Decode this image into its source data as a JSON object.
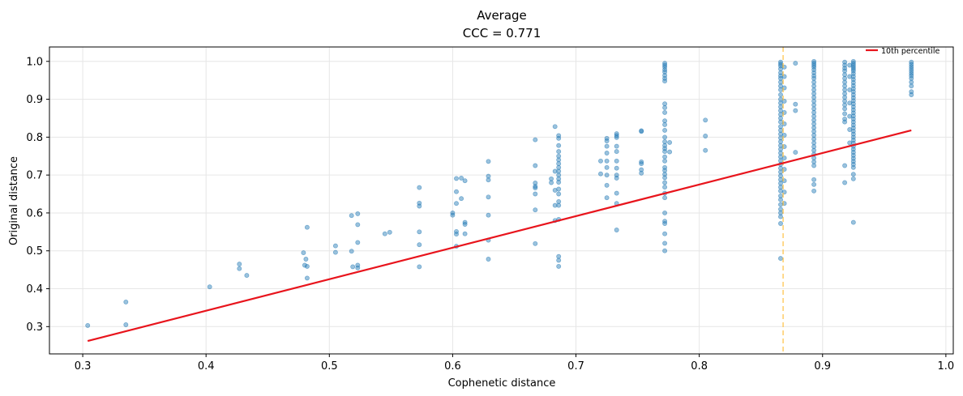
{
  "chart_data": {
    "type": "scatter",
    "title": "Average",
    "subtitle": "CCC = 0.771",
    "xlabel": "Cophenetic distance",
    "ylabel": "Original distance",
    "xlim": [
      0.273,
      1.006
    ],
    "ylim": [
      0.228,
      1.038
    ],
    "grid": true,
    "x_ticks": [
      0.3,
      0.4,
      0.5,
      0.6,
      0.7,
      0.8,
      0.9,
      1.0
    ],
    "x_tick_labels": [
      "0.3",
      "0.4",
      "0.5",
      "0.6",
      "0.7",
      "0.8",
      "0.9",
      "1.0"
    ],
    "y_ticks": [
      0.3,
      0.4,
      0.5,
      0.6,
      0.7,
      0.8,
      0.9,
      1.0
    ],
    "y_tick_labels": [
      "0.3",
      "0.4",
      "0.5",
      "0.6",
      "0.7",
      "0.8",
      "0.9",
      "1.0"
    ],
    "legend": {
      "position": "top-right",
      "entries": [
        "10th percentile"
      ]
    },
    "colors": {
      "points": "#1f77b4",
      "fit_line": "#e8141c",
      "vline": "#ffbf40",
      "grid": "#e6e6e6"
    },
    "fit_line": {
      "x": [
        0.304,
        0.972
      ],
      "y": [
        0.262,
        0.818
      ]
    },
    "vline_x": 0.868,
    "points": [
      {
        "x": 0.304,
        "y": 0.303
      },
      {
        "x": 0.335,
        "y": 0.365
      },
      {
        "x": 0.335,
        "y": 0.305
      },
      {
        "x": 0.403,
        "y": 0.405
      },
      {
        "x": 0.427,
        "y": 0.465
      },
      {
        "x": 0.427,
        "y": 0.453
      },
      {
        "x": 0.433,
        "y": 0.435
      },
      {
        "x": 0.479,
        "y": 0.495
      },
      {
        "x": 0.48,
        "y": 0.462
      },
      {
        "x": 0.481,
        "y": 0.478
      },
      {
        "x": 0.482,
        "y": 0.459
      },
      {
        "x": 0.482,
        "y": 0.428
      },
      {
        "x": 0.482,
        "y": 0.562
      },
      {
        "x": 0.505,
        "y": 0.513
      },
      {
        "x": 0.505,
        "y": 0.496
      },
      {
        "x": 0.518,
        "y": 0.593
      },
      {
        "x": 0.518,
        "y": 0.499
      },
      {
        "x": 0.519,
        "y": 0.458
      },
      {
        "x": 0.523,
        "y": 0.598
      },
      {
        "x": 0.523,
        "y": 0.569
      },
      {
        "x": 0.523,
        "y": 0.522
      },
      {
        "x": 0.523,
        "y": 0.462
      },
      {
        "x": 0.523,
        "y": 0.455
      },
      {
        "x": 0.545,
        "y": 0.545
      },
      {
        "x": 0.549,
        "y": 0.549
      },
      {
        "x": 0.573,
        "y": 0.667
      },
      {
        "x": 0.573,
        "y": 0.626
      },
      {
        "x": 0.573,
        "y": 0.618
      },
      {
        "x": 0.573,
        "y": 0.55
      },
      {
        "x": 0.573,
        "y": 0.516
      },
      {
        "x": 0.573,
        "y": 0.458
      },
      {
        "x": 0.6,
        "y": 0.6
      },
      {
        "x": 0.6,
        "y": 0.594
      },
      {
        "x": 0.603,
        "y": 0.691
      },
      {
        "x": 0.603,
        "y": 0.656
      },
      {
        "x": 0.603,
        "y": 0.625
      },
      {
        "x": 0.603,
        "y": 0.551
      },
      {
        "x": 0.603,
        "y": 0.544
      },
      {
        "x": 0.603,
        "y": 0.512
      },
      {
        "x": 0.607,
        "y": 0.638
      },
      {
        "x": 0.607,
        "y": 0.692
      },
      {
        "x": 0.61,
        "y": 0.685
      },
      {
        "x": 0.61,
        "y": 0.575
      },
      {
        "x": 0.61,
        "y": 0.57
      },
      {
        "x": 0.61,
        "y": 0.545
      },
      {
        "x": 0.629,
        "y": 0.736
      },
      {
        "x": 0.629,
        "y": 0.697
      },
      {
        "x": 0.629,
        "y": 0.687
      },
      {
        "x": 0.629,
        "y": 0.642
      },
      {
        "x": 0.629,
        "y": 0.594
      },
      {
        "x": 0.629,
        "y": 0.528
      },
      {
        "x": 0.629,
        "y": 0.478
      },
      {
        "x": 0.667,
        "y": 0.793
      },
      {
        "x": 0.667,
        "y": 0.725
      },
      {
        "x": 0.667,
        "y": 0.679
      },
      {
        "x": 0.667,
        "y": 0.67
      },
      {
        "x": 0.667,
        "y": 0.666
      },
      {
        "x": 0.667,
        "y": 0.65
      },
      {
        "x": 0.667,
        "y": 0.608
      },
      {
        "x": 0.667,
        "y": 0.519
      },
      {
        "x": 0.68,
        "y": 0.69
      },
      {
        "x": 0.68,
        "y": 0.68
      },
      {
        "x": 0.683,
        "y": 0.828
      },
      {
        "x": 0.683,
        "y": 0.71
      },
      {
        "x": 0.683,
        "y": 0.66
      },
      {
        "x": 0.683,
        "y": 0.62
      },
      {
        "x": 0.683,
        "y": 0.58
      },
      {
        "x": 0.686,
        "y": 0.804
      },
      {
        "x": 0.686,
        "y": 0.797
      },
      {
        "x": 0.686,
        "y": 0.778
      },
      {
        "x": 0.686,
        "y": 0.762
      },
      {
        "x": 0.686,
        "y": 0.75
      },
      {
        "x": 0.686,
        "y": 0.74
      },
      {
        "x": 0.686,
        "y": 0.73
      },
      {
        "x": 0.686,
        "y": 0.72
      },
      {
        "x": 0.686,
        "y": 0.71
      },
      {
        "x": 0.686,
        "y": 0.7
      },
      {
        "x": 0.686,
        "y": 0.69
      },
      {
        "x": 0.686,
        "y": 0.681
      },
      {
        "x": 0.686,
        "y": 0.663
      },
      {
        "x": 0.686,
        "y": 0.65
      },
      {
        "x": 0.686,
        "y": 0.63
      },
      {
        "x": 0.686,
        "y": 0.62
      },
      {
        "x": 0.686,
        "y": 0.583
      },
      {
        "x": 0.686,
        "y": 0.485
      },
      {
        "x": 0.686,
        "y": 0.475
      },
      {
        "x": 0.686,
        "y": 0.459
      },
      {
        "x": 0.72,
        "y": 0.737
      },
      {
        "x": 0.72,
        "y": 0.703
      },
      {
        "x": 0.725,
        "y": 0.797
      },
      {
        "x": 0.725,
        "y": 0.79
      },
      {
        "x": 0.725,
        "y": 0.776
      },
      {
        "x": 0.725,
        "y": 0.758
      },
      {
        "x": 0.725,
        "y": 0.737
      },
      {
        "x": 0.725,
        "y": 0.72
      },
      {
        "x": 0.725,
        "y": 0.7
      },
      {
        "x": 0.725,
        "y": 0.673
      },
      {
        "x": 0.725,
        "y": 0.64
      },
      {
        "x": 0.733,
        "y": 0.809
      },
      {
        "x": 0.733,
        "y": 0.804
      },
      {
        "x": 0.733,
        "y": 0.799
      },
      {
        "x": 0.733,
        "y": 0.776
      },
      {
        "x": 0.733,
        "y": 0.762
      },
      {
        "x": 0.733,
        "y": 0.737
      },
      {
        "x": 0.733,
        "y": 0.718
      },
      {
        "x": 0.733,
        "y": 0.7
      },
      {
        "x": 0.733,
        "y": 0.692
      },
      {
        "x": 0.733,
        "y": 0.652
      },
      {
        "x": 0.733,
        "y": 0.625
      },
      {
        "x": 0.733,
        "y": 0.555
      },
      {
        "x": 0.753,
        "y": 0.817
      },
      {
        "x": 0.753,
        "y": 0.815
      },
      {
        "x": 0.753,
        "y": 0.735
      },
      {
        "x": 0.753,
        "y": 0.73
      },
      {
        "x": 0.753,
        "y": 0.714
      },
      {
        "x": 0.753,
        "y": 0.705
      },
      {
        "x": 0.772,
        "y": 0.995
      },
      {
        "x": 0.772,
        "y": 0.99
      },
      {
        "x": 0.772,
        "y": 0.985
      },
      {
        "x": 0.772,
        "y": 0.978
      },
      {
        "x": 0.772,
        "y": 0.972
      },
      {
        "x": 0.772,
        "y": 0.963
      },
      {
        "x": 0.772,
        "y": 0.955
      },
      {
        "x": 0.772,
        "y": 0.948
      },
      {
        "x": 0.772,
        "y": 0.888
      },
      {
        "x": 0.772,
        "y": 0.878
      },
      {
        "x": 0.772,
        "y": 0.865
      },
      {
        "x": 0.772,
        "y": 0.843
      },
      {
        "x": 0.772,
        "y": 0.833
      },
      {
        "x": 0.772,
        "y": 0.818
      },
      {
        "x": 0.772,
        "y": 0.8
      },
      {
        "x": 0.772,
        "y": 0.788
      },
      {
        "x": 0.772,
        "y": 0.778
      },
      {
        "x": 0.772,
        "y": 0.77
      },
      {
        "x": 0.772,
        "y": 0.762
      },
      {
        "x": 0.772,
        "y": 0.748
      },
      {
        "x": 0.772,
        "y": 0.737
      },
      {
        "x": 0.772,
        "y": 0.72
      },
      {
        "x": 0.772,
        "y": 0.712
      },
      {
        "x": 0.772,
        "y": 0.702
      },
      {
        "x": 0.772,
        "y": 0.693
      },
      {
        "x": 0.772,
        "y": 0.68
      },
      {
        "x": 0.772,
        "y": 0.668
      },
      {
        "x": 0.772,
        "y": 0.652
      },
      {
        "x": 0.772,
        "y": 0.64
      },
      {
        "x": 0.772,
        "y": 0.6
      },
      {
        "x": 0.772,
        "y": 0.578
      },
      {
        "x": 0.772,
        "y": 0.572
      },
      {
        "x": 0.772,
        "y": 0.545
      },
      {
        "x": 0.772,
        "y": 0.52
      },
      {
        "x": 0.772,
        "y": 0.5
      },
      {
        "x": 0.776,
        "y": 0.786
      },
      {
        "x": 0.776,
        "y": 0.761
      },
      {
        "x": 0.805,
        "y": 0.845
      },
      {
        "x": 0.805,
        "y": 0.803
      },
      {
        "x": 0.805,
        "y": 0.765
      },
      {
        "x": 0.866,
        "y": 0.998
      },
      {
        "x": 0.866,
        "y": 0.993
      },
      {
        "x": 0.866,
        "y": 0.988
      },
      {
        "x": 0.866,
        "y": 0.98
      },
      {
        "x": 0.866,
        "y": 0.97
      },
      {
        "x": 0.866,
        "y": 0.962
      },
      {
        "x": 0.866,
        "y": 0.955
      },
      {
        "x": 0.866,
        "y": 0.945
      },
      {
        "x": 0.866,
        "y": 0.935
      },
      {
        "x": 0.866,
        "y": 0.925
      },
      {
        "x": 0.866,
        "y": 0.912
      },
      {
        "x": 0.866,
        "y": 0.9
      },
      {
        "x": 0.866,
        "y": 0.89
      },
      {
        "x": 0.866,
        "y": 0.88
      },
      {
        "x": 0.866,
        "y": 0.87
      },
      {
        "x": 0.866,
        "y": 0.86
      },
      {
        "x": 0.866,
        "y": 0.85
      },
      {
        "x": 0.866,
        "y": 0.84
      },
      {
        "x": 0.866,
        "y": 0.828
      },
      {
        "x": 0.866,
        "y": 0.818
      },
      {
        "x": 0.866,
        "y": 0.808
      },
      {
        "x": 0.866,
        "y": 0.798
      },
      {
        "x": 0.866,
        "y": 0.788
      },
      {
        "x": 0.866,
        "y": 0.778
      },
      {
        "x": 0.866,
        "y": 0.768
      },
      {
        "x": 0.866,
        "y": 0.758
      },
      {
        "x": 0.866,
        "y": 0.748
      },
      {
        "x": 0.866,
        "y": 0.738
      },
      {
        "x": 0.866,
        "y": 0.728
      },
      {
        "x": 0.866,
        "y": 0.718
      },
      {
        "x": 0.866,
        "y": 0.708
      },
      {
        "x": 0.866,
        "y": 0.698
      },
      {
        "x": 0.866,
        "y": 0.688
      },
      {
        "x": 0.866,
        "y": 0.678
      },
      {
        "x": 0.866,
        "y": 0.668
      },
      {
        "x": 0.866,
        "y": 0.658
      },
      {
        "x": 0.866,
        "y": 0.645
      },
      {
        "x": 0.866,
        "y": 0.635
      },
      {
        "x": 0.866,
        "y": 0.622
      },
      {
        "x": 0.866,
        "y": 0.61
      },
      {
        "x": 0.866,
        "y": 0.6
      },
      {
        "x": 0.866,
        "y": 0.59
      },
      {
        "x": 0.866,
        "y": 0.572
      },
      {
        "x": 0.866,
        "y": 0.48
      },
      {
        "x": 0.869,
        "y": 0.985
      },
      {
        "x": 0.869,
        "y": 0.96
      },
      {
        "x": 0.869,
        "y": 0.93
      },
      {
        "x": 0.869,
        "y": 0.895
      },
      {
        "x": 0.869,
        "y": 0.865
      },
      {
        "x": 0.869,
        "y": 0.835
      },
      {
        "x": 0.869,
        "y": 0.805
      },
      {
        "x": 0.869,
        "y": 0.775
      },
      {
        "x": 0.869,
        "y": 0.745
      },
      {
        "x": 0.869,
        "y": 0.715
      },
      {
        "x": 0.869,
        "y": 0.685
      },
      {
        "x": 0.869,
        "y": 0.655
      },
      {
        "x": 0.869,
        "y": 0.625
      },
      {
        "x": 0.878,
        "y": 0.995
      },
      {
        "x": 0.878,
        "y": 0.887
      },
      {
        "x": 0.878,
        "y": 0.87
      },
      {
        "x": 0.878,
        "y": 0.76
      },
      {
        "x": 0.893,
        "y": 1.0
      },
      {
        "x": 0.893,
        "y": 0.995
      },
      {
        "x": 0.893,
        "y": 0.99
      },
      {
        "x": 0.893,
        "y": 0.985
      },
      {
        "x": 0.893,
        "y": 0.978
      },
      {
        "x": 0.893,
        "y": 0.97
      },
      {
        "x": 0.893,
        "y": 0.962
      },
      {
        "x": 0.893,
        "y": 0.955
      },
      {
        "x": 0.893,
        "y": 0.945
      },
      {
        "x": 0.893,
        "y": 0.935
      },
      {
        "x": 0.893,
        "y": 0.925
      },
      {
        "x": 0.893,
        "y": 0.915
      },
      {
        "x": 0.893,
        "y": 0.905
      },
      {
        "x": 0.893,
        "y": 0.895
      },
      {
        "x": 0.893,
        "y": 0.885
      },
      {
        "x": 0.893,
        "y": 0.875
      },
      {
        "x": 0.893,
        "y": 0.865
      },
      {
        "x": 0.893,
        "y": 0.855
      },
      {
        "x": 0.893,
        "y": 0.845
      },
      {
        "x": 0.893,
        "y": 0.835
      },
      {
        "x": 0.893,
        "y": 0.825
      },
      {
        "x": 0.893,
        "y": 0.815
      },
      {
        "x": 0.893,
        "y": 0.805
      },
      {
        "x": 0.893,
        "y": 0.795
      },
      {
        "x": 0.893,
        "y": 0.785
      },
      {
        "x": 0.893,
        "y": 0.775
      },
      {
        "x": 0.893,
        "y": 0.765
      },
      {
        "x": 0.893,
        "y": 0.755
      },
      {
        "x": 0.893,
        "y": 0.745
      },
      {
        "x": 0.893,
        "y": 0.735
      },
      {
        "x": 0.893,
        "y": 0.725
      },
      {
        "x": 0.893,
        "y": 0.688
      },
      {
        "x": 0.893,
        "y": 0.675
      },
      {
        "x": 0.893,
        "y": 0.658
      },
      {
        "x": 0.918,
        "y": 0.998
      },
      {
        "x": 0.918,
        "y": 0.99
      },
      {
        "x": 0.918,
        "y": 0.982
      },
      {
        "x": 0.918,
        "y": 0.975
      },
      {
        "x": 0.918,
        "y": 0.965
      },
      {
        "x": 0.918,
        "y": 0.955
      },
      {
        "x": 0.918,
        "y": 0.945
      },
      {
        "x": 0.918,
        "y": 0.935
      },
      {
        "x": 0.918,
        "y": 0.925
      },
      {
        "x": 0.918,
        "y": 0.915
      },
      {
        "x": 0.918,
        "y": 0.905
      },
      {
        "x": 0.918,
        "y": 0.895
      },
      {
        "x": 0.918,
        "y": 0.885
      },
      {
        "x": 0.918,
        "y": 0.875
      },
      {
        "x": 0.918,
        "y": 0.862
      },
      {
        "x": 0.918,
        "y": 0.848
      },
      {
        "x": 0.918,
        "y": 0.84
      },
      {
        "x": 0.918,
        "y": 0.725
      },
      {
        "x": 0.918,
        "y": 0.68
      },
      {
        "x": 0.922,
        "y": 0.99
      },
      {
        "x": 0.922,
        "y": 0.96
      },
      {
        "x": 0.922,
        "y": 0.925
      },
      {
        "x": 0.922,
        "y": 0.89
      },
      {
        "x": 0.922,
        "y": 0.855
      },
      {
        "x": 0.922,
        "y": 0.82
      },
      {
        "x": 0.922,
        "y": 0.785
      },
      {
        "x": 0.925,
        "y": 1.0
      },
      {
        "x": 0.925,
        "y": 0.995
      },
      {
        "x": 0.925,
        "y": 0.99
      },
      {
        "x": 0.925,
        "y": 0.985
      },
      {
        "x": 0.925,
        "y": 0.98
      },
      {
        "x": 0.925,
        "y": 0.975
      },
      {
        "x": 0.925,
        "y": 0.968
      },
      {
        "x": 0.925,
        "y": 0.96
      },
      {
        "x": 0.925,
        "y": 0.952
      },
      {
        "x": 0.925,
        "y": 0.944
      },
      {
        "x": 0.925,
        "y": 0.936
      },
      {
        "x": 0.925,
        "y": 0.928
      },
      {
        "x": 0.925,
        "y": 0.92
      },
      {
        "x": 0.925,
        "y": 0.912
      },
      {
        "x": 0.925,
        "y": 0.904
      },
      {
        "x": 0.925,
        "y": 0.896
      },
      {
        "x": 0.925,
        "y": 0.888
      },
      {
        "x": 0.925,
        "y": 0.88
      },
      {
        "x": 0.925,
        "y": 0.872
      },
      {
        "x": 0.925,
        "y": 0.864
      },
      {
        "x": 0.925,
        "y": 0.856
      },
      {
        "x": 0.925,
        "y": 0.848
      },
      {
        "x": 0.925,
        "y": 0.84
      },
      {
        "x": 0.925,
        "y": 0.832
      },
      {
        "x": 0.925,
        "y": 0.824
      },
      {
        "x": 0.925,
        "y": 0.816
      },
      {
        "x": 0.925,
        "y": 0.808
      },
      {
        "x": 0.925,
        "y": 0.8
      },
      {
        "x": 0.925,
        "y": 0.792
      },
      {
        "x": 0.925,
        "y": 0.784
      },
      {
        "x": 0.925,
        "y": 0.776
      },
      {
        "x": 0.925,
        "y": 0.768
      },
      {
        "x": 0.925,
        "y": 0.76
      },
      {
        "x": 0.925,
        "y": 0.752
      },
      {
        "x": 0.925,
        "y": 0.744
      },
      {
        "x": 0.925,
        "y": 0.736
      },
      {
        "x": 0.925,
        "y": 0.728
      },
      {
        "x": 0.925,
        "y": 0.72
      },
      {
        "x": 0.925,
        "y": 0.702
      },
      {
        "x": 0.925,
        "y": 0.69
      },
      {
        "x": 0.925,
        "y": 0.575
      },
      {
        "x": 0.972,
        "y": 0.998
      },
      {
        "x": 0.972,
        "y": 0.992
      },
      {
        "x": 0.972,
        "y": 0.986
      },
      {
        "x": 0.972,
        "y": 0.98
      },
      {
        "x": 0.972,
        "y": 0.974
      },
      {
        "x": 0.972,
        "y": 0.968
      },
      {
        "x": 0.972,
        "y": 0.962
      },
      {
        "x": 0.972,
        "y": 0.955
      },
      {
        "x": 0.972,
        "y": 0.945
      },
      {
        "x": 0.972,
        "y": 0.935
      },
      {
        "x": 0.972,
        "y": 0.92
      },
      {
        "x": 0.972,
        "y": 0.912
      }
    ]
  }
}
